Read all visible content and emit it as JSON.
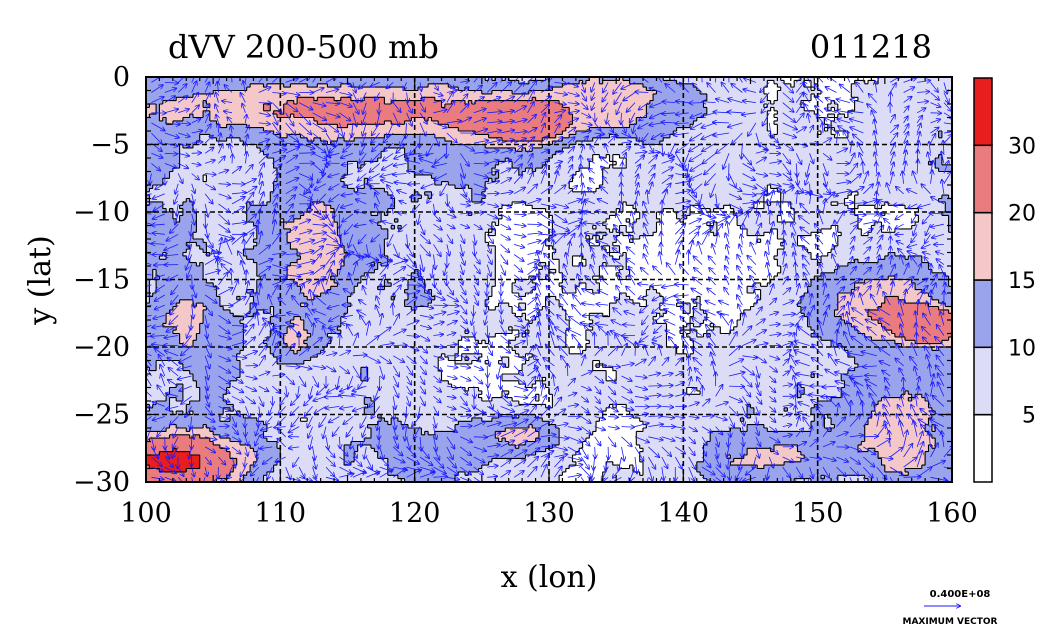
{
  "chart_data": {
    "type": "heatmap",
    "title": "dVV 200-500 mb",
    "date_label": "011218",
    "xlabel": "x (lon)",
    "ylabel": "y (lat)",
    "xlim": [
      100,
      160
    ],
    "ylim": [
      -30,
      0
    ],
    "x_ticks": [
      {
        "value": 100,
        "label": "100"
      },
      {
        "value": 110,
        "label": "110"
      },
      {
        "value": 120,
        "label": "120"
      },
      {
        "value": 130,
        "label": "130"
      },
      {
        "value": 140,
        "label": "140"
      },
      {
        "value": 150,
        "label": "150"
      },
      {
        "value": 160,
        "label": "160"
      }
    ],
    "y_ticks": [
      {
        "value": 0,
        "label": "0"
      },
      {
        "value": -5,
        "label": "−5"
      },
      {
        "value": -10,
        "label": "−10"
      },
      {
        "value": -15,
        "label": "−15"
      },
      {
        "value": -20,
        "label": "−20"
      },
      {
        "value": -25,
        "label": "−25"
      },
      {
        "value": -30,
        "label": "−30"
      }
    ],
    "grid": true,
    "grid_lines_x": [
      110,
      120,
      130,
      140,
      150
    ],
    "grid_lines_y": [
      -5,
      -10,
      -15,
      -20,
      -25
    ],
    "colorbar": {
      "placement": "right",
      "levels": [
        0,
        5,
        10,
        15,
        20,
        30,
        40
      ],
      "tick_labels": [
        {
          "value": 5,
          "label": "5"
        },
        {
          "value": 10,
          "label": "10"
        },
        {
          "value": 15,
          "label": "15"
        },
        {
          "value": 20,
          "label": "20"
        },
        {
          "value": 30,
          "label": "30"
        }
      ],
      "colors": [
        "#ffffff",
        "#dcdcf6",
        "#9aa4ec",
        "#f4c8c8",
        "#ea7c80",
        "#e81e1e"
      ]
    },
    "field_pattern": [
      {
        "lon": 117,
        "lat": -2.5,
        "value": 22,
        "rx": 17,
        "ry": 2.2
      },
      {
        "lon": 128,
        "lat": -3.5,
        "value": 31,
        "rx": 3,
        "ry": 1.2
      },
      {
        "lon": 136,
        "lat": -2,
        "value": 17,
        "rx": 6,
        "ry": 2
      },
      {
        "lon": 113,
        "lat": -13,
        "value": 17,
        "rx": 3,
        "ry": 6
      },
      {
        "lon": 103,
        "lat": -18,
        "value": 17,
        "rx": 2.5,
        "ry": 3
      },
      {
        "lon": 111,
        "lat": -19.5,
        "value": 16,
        "rx": 1.6,
        "ry": 1.6
      },
      {
        "lon": 102,
        "lat": -28.5,
        "value": 34,
        "rx": 5,
        "ry": 2
      },
      {
        "lon": 155,
        "lat": -17,
        "value": 21,
        "rx": 5,
        "ry": 3
      },
      {
        "lon": 158.5,
        "lat": -18.5,
        "value": 32,
        "rx": 2,
        "ry": 1.2
      },
      {
        "lon": 156,
        "lat": -26,
        "value": 18,
        "rx": 4,
        "ry": 4
      },
      {
        "lon": 147,
        "lat": -28,
        "value": 17,
        "rx": 4,
        "ry": 1.6
      },
      {
        "lon": 128,
        "lat": -26.5,
        "value": 16,
        "rx": 3,
        "ry": 1.4
      },
      {
        "lon": 146,
        "lat": -1.5,
        "value": 4,
        "rx": 8,
        "ry": 4
      },
      {
        "lon": 140,
        "lat": -13,
        "value": 3,
        "rx": 9,
        "ry": 5
      },
      {
        "lon": 125,
        "lat": -22,
        "value": 4,
        "rx": 4,
        "ry": 2.5
      }
    ],
    "vector_legend": {
      "value_label": "0.400E+08",
      "caption": "MAXIMUM VECTOR",
      "color": "#1a1aff"
    },
    "contour_color": "#000000",
    "vector_color": "#1a1aff"
  }
}
